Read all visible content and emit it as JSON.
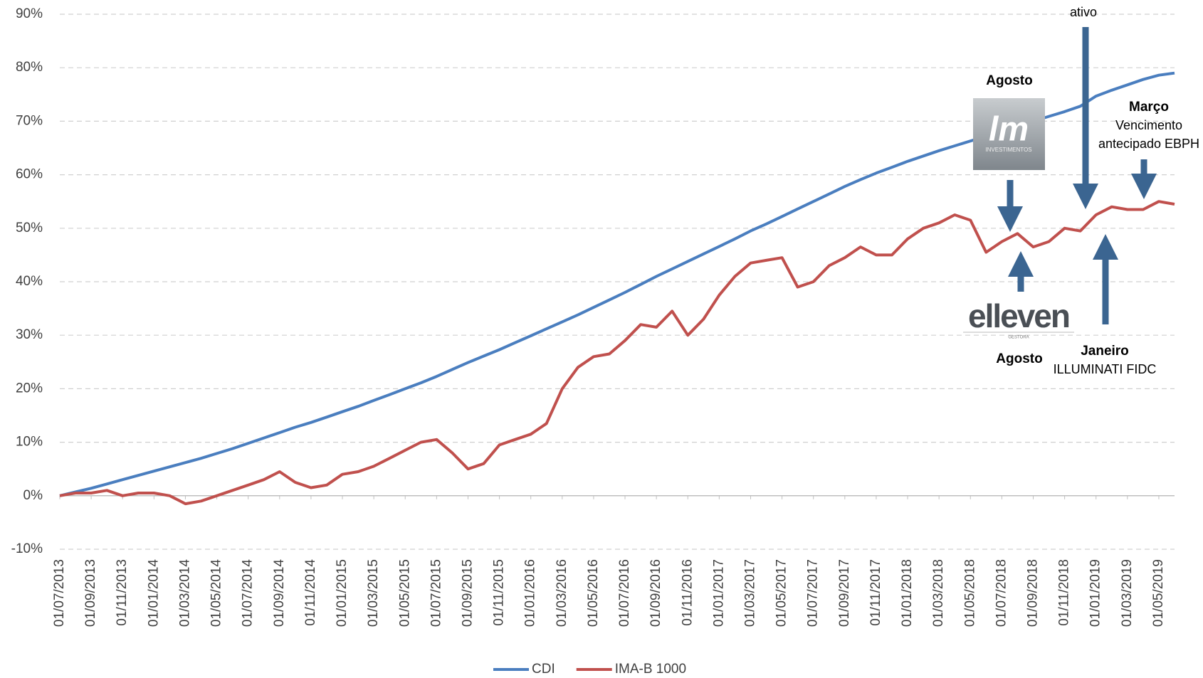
{
  "chart_data": {
    "type": "line",
    "x": [
      "01/07/2013",
      "01/08/2013",
      "01/09/2013",
      "01/10/2013",
      "01/11/2013",
      "01/12/2013",
      "01/01/2014",
      "01/02/2014",
      "01/03/2014",
      "01/04/2014",
      "01/05/2014",
      "01/06/2014",
      "01/07/2014",
      "01/08/2014",
      "01/09/2014",
      "01/10/2014",
      "01/11/2014",
      "01/12/2014",
      "01/01/2015",
      "01/02/2015",
      "01/03/2015",
      "01/04/2015",
      "01/05/2015",
      "01/06/2015",
      "01/07/2015",
      "01/08/2015",
      "01/09/2015",
      "01/10/2015",
      "01/11/2015",
      "01/12/2015",
      "01/01/2016",
      "01/02/2016",
      "01/03/2016",
      "01/04/2016",
      "01/05/2016",
      "01/06/2016",
      "01/07/2016",
      "01/08/2016",
      "01/09/2016",
      "01/10/2016",
      "01/11/2016",
      "01/12/2016",
      "01/01/2017",
      "01/02/2017",
      "01/03/2017",
      "01/04/2017",
      "01/05/2017",
      "01/06/2017",
      "01/07/2017",
      "01/08/2017",
      "01/09/2017",
      "01/10/2017",
      "01/11/2017",
      "01/12/2017",
      "01/01/2018",
      "01/02/2018",
      "01/03/2018",
      "01/04/2018",
      "01/05/2018",
      "01/06/2018",
      "01/07/2018",
      "01/08/2018",
      "01/09/2018",
      "01/10/2018",
      "01/11/2018",
      "01/12/2018",
      "01/01/2019",
      "01/02/2019",
      "01/03/2019",
      "01/04/2019",
      "01/05/2019",
      "01/06/2019"
    ],
    "series": [
      {
        "name": "CDI",
        "color": "#4a7ebf",
        "values": [
          0,
          0.7,
          1.4,
          2.2,
          3.0,
          3.8,
          4.6,
          5.4,
          6.2,
          7.0,
          7.9,
          8.8,
          9.8,
          10.8,
          11.8,
          12.8,
          13.7,
          14.7,
          15.7,
          16.7,
          17.8,
          18.9,
          20.0,
          21.1,
          22.3,
          23.6,
          24.9,
          26.1,
          27.3,
          28.6,
          29.9,
          31.2,
          32.5,
          33.8,
          35.2,
          36.6,
          38.0,
          39.5,
          41.0,
          42.4,
          43.8,
          45.2,
          46.6,
          48.0,
          49.5,
          50.8,
          52.2,
          53.6,
          55.0,
          56.4,
          57.8,
          59.1,
          60.3,
          61.4,
          62.5,
          63.5,
          64.5,
          65.4,
          66.3,
          67.2,
          68.1,
          69.1,
          70.0,
          70.9,
          71.8,
          72.8,
          74.7,
          75.8,
          76.8,
          77.8,
          78.6,
          79.0
        ]
      },
      {
        "name": "IMA-B 1000",
        "color": "#c0504d",
        "values": [
          0,
          0.5,
          0.5,
          1,
          0,
          0.5,
          0.5,
          0,
          -1.5,
          -1,
          0,
          1,
          2,
          3,
          4.5,
          2.5,
          1.5,
          2,
          4,
          4.5,
          5.5,
          7,
          8.5,
          10,
          10.5,
          8,
          5,
          6,
          9.5,
          10.5,
          11.5,
          13.5,
          20,
          24,
          26,
          26.5,
          29,
          32,
          31.5,
          34.5,
          30,
          33,
          37.5,
          41,
          43.5,
          44,
          44.5,
          39,
          40,
          43,
          44.5,
          46.5,
          45,
          45,
          48,
          50,
          51,
          52.5,
          51.5,
          45.5,
          47.5,
          49,
          46.5,
          47.5,
          50,
          49.5,
          52.5,
          54,
          53.5,
          53.5,
          55,
          54.5
        ]
      }
    ],
    "xlim": [
      "01/07/2013",
      "01/06/2019"
    ],
    "xticks": [
      "01/07/2013",
      "01/09/2013",
      "01/11/2013",
      "01/01/2014",
      "01/03/2014",
      "01/05/2014",
      "01/07/2014",
      "01/09/2014",
      "01/11/2014",
      "01/01/2015",
      "01/03/2015",
      "01/05/2015",
      "01/07/2015",
      "01/09/2015",
      "01/11/2015",
      "01/01/2016",
      "01/03/2016",
      "01/05/2016",
      "01/07/2016",
      "01/09/2016",
      "01/11/2016",
      "01/01/2017",
      "01/03/2017",
      "01/05/2017",
      "01/07/2017",
      "01/09/2017",
      "01/11/2017",
      "01/01/2018",
      "01/03/2018",
      "01/05/2018",
      "01/07/2018",
      "01/09/2018",
      "01/11/2018",
      "01/01/2019",
      "01/03/2019",
      "01/05/2019"
    ],
    "ylim": [
      -10,
      90
    ],
    "yticks": [
      {
        "value": -10,
        "label": "-10%"
      },
      {
        "value": 0,
        "label": "0%"
      },
      {
        "value": 10,
        "label": "10%"
      },
      {
        "value": 20,
        "label": "20%"
      },
      {
        "value": 30,
        "label": "30%"
      },
      {
        "value": 40,
        "label": "40%"
      },
      {
        "value": 50,
        "label": "50%"
      },
      {
        "value": 60,
        "label": "60%"
      },
      {
        "value": 70,
        "label": "70%"
      },
      {
        "value": 80,
        "label": "80%"
      },
      {
        "value": 90,
        "label": "90%"
      }
    ],
    "grid": true,
    "legend": "bottom",
    "annotations": [
      "ativo",
      "Agosto",
      "lm",
      "INVESTIMENTOS",
      "Março",
      "Vencimento",
      "antecipado EBPH",
      "elleven",
      "GESTORA",
      "Agosto",
      "Janeiro",
      "ILLUMINATI FIDC"
    ]
  }
}
